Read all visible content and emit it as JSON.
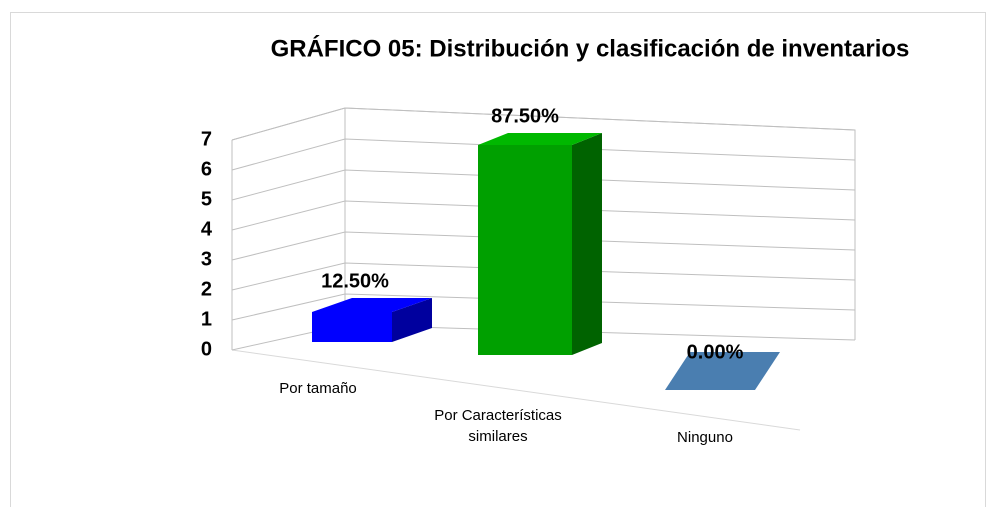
{
  "chart_data": {
    "type": "bar3d",
    "title": "GRÁFICO 05: Distribución y clasificación de inventarios",
    "categories": [
      "Por tamaño",
      "Por Características similares",
      "Ninguno"
    ],
    "values": [
      1,
      7,
      0
    ],
    "percentages": [
      12.5,
      87.5,
      0
    ],
    "percentage_labels": [
      "12.50%",
      "87.50%",
      "0.00%"
    ],
    "colors": [
      "#0000ff",
      "#00a000",
      "#4a7eb0"
    ],
    "ylim": [
      0,
      7
    ],
    "yticks": [
      0,
      1,
      2,
      3,
      4,
      5,
      6,
      7
    ],
    "grid": true
  }
}
